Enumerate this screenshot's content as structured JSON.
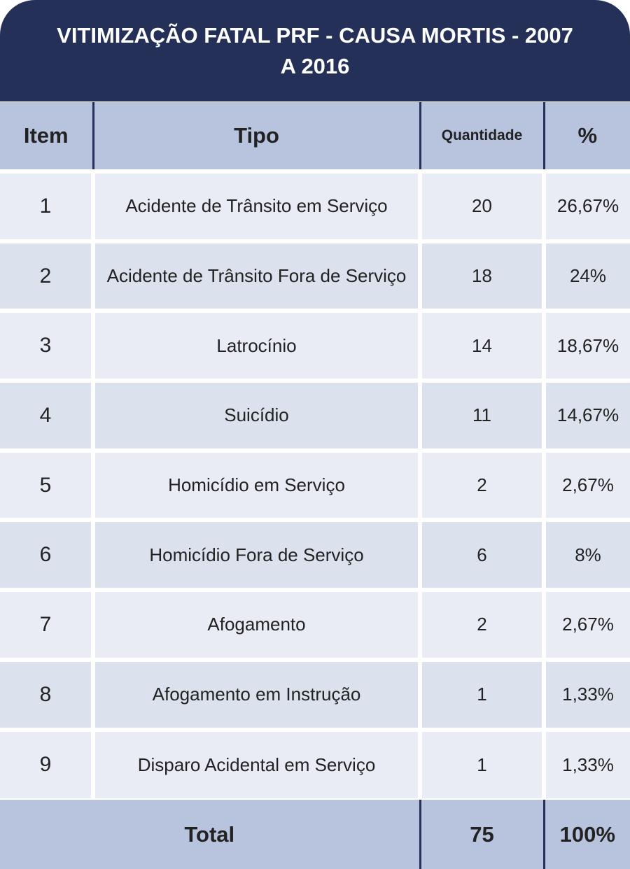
{
  "title": "VITIMIZAÇÃO FATAL PRF - CAUSA MORTIS - 2007 A 2016",
  "headers": {
    "item": "Item",
    "tipo": "Tipo",
    "quantidade": "Quantidade",
    "percent": "%"
  },
  "rows": [
    {
      "item": "1",
      "tipo": "Acidente de Trânsito em Serviço",
      "quantidade": "20",
      "percent": "26,67%"
    },
    {
      "item": "2",
      "tipo": "Acidente de Trânsito Fora de Serviço",
      "quantidade": "18",
      "percent": "24%"
    },
    {
      "item": "3",
      "tipo": "Latrocínio",
      "quantidade": "14",
      "percent": "18,67%"
    },
    {
      "item": "4",
      "tipo": "Suicídio",
      "quantidade": "11",
      "percent": "14,67%"
    },
    {
      "item": "5",
      "tipo": "Homicídio em Serviço",
      "quantidade": "2",
      "percent": "2,67%"
    },
    {
      "item": "6",
      "tipo": "Homicídio Fora de Serviço",
      "quantidade": "6",
      "percent": "8%"
    },
    {
      "item": "7",
      "tipo": "Afogamento",
      "quantidade": "2",
      "percent": "2,67%"
    },
    {
      "item": "8",
      "tipo": "Afogamento em Instrução",
      "quantidade": "1",
      "percent": "1,33%"
    },
    {
      "item": "9",
      "tipo": "Disparo Acidental em Serviço",
      "quantidade": "1",
      "percent": "1,33%"
    }
  ],
  "total": {
    "label": "Total",
    "quantidade": "75",
    "percent": "100%"
  },
  "colors": {
    "title_background": "#243057",
    "header_background": "#b8c3de",
    "row_light": "#e9ecf5",
    "row_dark": "#dce1ee"
  }
}
